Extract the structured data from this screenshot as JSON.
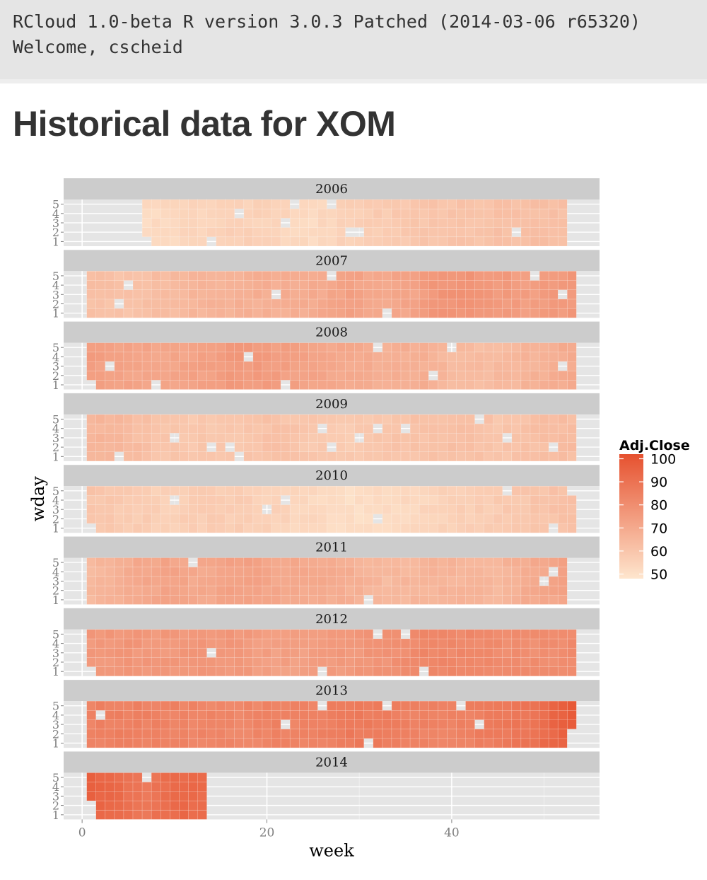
{
  "header": {
    "version_line": "RCloud 1.0-beta R version 3.0.3 Patched (2014-03-06 r65320)",
    "welcome_line": "Welcome, cscheid"
  },
  "page": {
    "title": "Historical data for XOM"
  },
  "chart_data": {
    "type": "heatmap",
    "title": "",
    "xlabel": "week",
    "ylabel": "wday",
    "facet_by": "year",
    "x_ticks": [
      0,
      20,
      40
    ],
    "x_tick_labels": [
      "0",
      "20",
      "40"
    ],
    "xlim": [
      -2,
      56
    ],
    "y_ticks": [
      1,
      2,
      3,
      4,
      5
    ],
    "y_tick_labels": [
      "1",
      "2",
      "3",
      "4",
      "5"
    ],
    "ylim": [
      0.5,
      5.5
    ],
    "grid": true,
    "legend": {
      "title": "Adj.Close",
      "position": "right",
      "breaks": [
        100,
        90,
        80,
        70,
        60,
        50
      ],
      "range": [
        48,
        102
      ],
      "low_color": "#fee6ce",
      "high_color": "#e6512f"
    },
    "facets": [
      {
        "year": "2006",
        "start_week": 7,
        "end_week": 52,
        "values": [
          {
            "week": 7,
            "value": 52
          },
          {
            "week": 12,
            "value": 54
          },
          {
            "week": 17,
            "value": 56
          },
          {
            "week": 22,
            "value": 54
          },
          {
            "week": 25,
            "value": 52
          },
          {
            "week": 28,
            "value": 55
          },
          {
            "week": 33,
            "value": 58
          },
          {
            "week": 38,
            "value": 60
          },
          {
            "week": 43,
            "value": 61
          },
          {
            "week": 48,
            "value": 62
          },
          {
            "week": 52,
            "value": 62
          }
        ]
      },
      {
        "year": "2007",
        "start_week": 1,
        "end_week": 53,
        "values": [
          {
            "week": 1,
            "value": 62
          },
          {
            "week": 5,
            "value": 61
          },
          {
            "week": 10,
            "value": 64
          },
          {
            "week": 15,
            "value": 67
          },
          {
            "week": 20,
            "value": 68
          },
          {
            "week": 25,
            "value": 69
          },
          {
            "week": 29,
            "value": 73
          },
          {
            "week": 32,
            "value": 70
          },
          {
            "week": 36,
            "value": 72
          },
          {
            "week": 38,
            "value": 77
          },
          {
            "week": 41,
            "value": 78
          },
          {
            "week": 44,
            "value": 76
          },
          {
            "week": 48,
            "value": 74
          },
          {
            "week": 53,
            "value": 76
          }
        ]
      },
      {
        "year": "2008",
        "start_week": 1,
        "end_week": 53,
        "values": [
          {
            "week": 1,
            "value": 74
          },
          {
            "week": 5,
            "value": 72
          },
          {
            "week": 9,
            "value": 71
          },
          {
            "week": 13,
            "value": 73
          },
          {
            "week": 17,
            "value": 76
          },
          {
            "week": 21,
            "value": 74
          },
          {
            "week": 25,
            "value": 72
          },
          {
            "week": 29,
            "value": 70
          },
          {
            "week": 33,
            "value": 68
          },
          {
            "week": 37,
            "value": 68
          },
          {
            "week": 40,
            "value": 64
          },
          {
            "week": 44,
            "value": 63
          },
          {
            "week": 48,
            "value": 66
          },
          {
            "week": 53,
            "value": 70
          }
        ]
      },
      {
        "year": "2009",
        "start_week": 1,
        "end_week": 53,
        "values": [
          {
            "week": 1,
            "value": 66
          },
          {
            "week": 5,
            "value": 64
          },
          {
            "week": 9,
            "value": 60
          },
          {
            "week": 13,
            "value": 59
          },
          {
            "week": 17,
            "value": 60
          },
          {
            "week": 21,
            "value": 61
          },
          {
            "week": 25,
            "value": 59
          },
          {
            "week": 29,
            "value": 58
          },
          {
            "week": 33,
            "value": 60
          },
          {
            "week": 37,
            "value": 61
          },
          {
            "week": 41,
            "value": 62
          },
          {
            "week": 45,
            "value": 60
          },
          {
            "week": 49,
            "value": 62
          },
          {
            "week": 53,
            "value": 63
          }
        ]
      },
      {
        "year": "2010",
        "start_week": 1,
        "end_week": 53,
        "values": [
          {
            "week": 1,
            "value": 60
          },
          {
            "week": 5,
            "value": 58
          },
          {
            "week": 9,
            "value": 56
          },
          {
            "week": 13,
            "value": 57
          },
          {
            "week": 17,
            "value": 57
          },
          {
            "week": 21,
            "value": 55
          },
          {
            "week": 25,
            "value": 53
          },
          {
            "week": 29,
            "value": 51
          },
          {
            "week": 33,
            "value": 52
          },
          {
            "week": 37,
            "value": 54
          },
          {
            "week": 41,
            "value": 56
          },
          {
            "week": 45,
            "value": 58
          },
          {
            "week": 49,
            "value": 60
          },
          {
            "week": 53,
            "value": 62
          }
        ]
      },
      {
        "year": "2011",
        "start_week": 1,
        "end_week": 52,
        "values": [
          {
            "week": 1,
            "value": 64
          },
          {
            "week": 5,
            "value": 69
          },
          {
            "week": 9,
            "value": 72
          },
          {
            "week": 13,
            "value": 70
          },
          {
            "week": 17,
            "value": 73
          },
          {
            "week": 21,
            "value": 71
          },
          {
            "week": 25,
            "value": 70
          },
          {
            "week": 29,
            "value": 68
          },
          {
            "week": 33,
            "value": 64
          },
          {
            "week": 37,
            "value": 66
          },
          {
            "week": 41,
            "value": 66
          },
          {
            "week": 45,
            "value": 65
          },
          {
            "week": 49,
            "value": 70
          },
          {
            "week": 52,
            "value": 72
          }
        ]
      },
      {
        "year": "2012",
        "start_week": 1,
        "end_week": 53,
        "values": [
          {
            "week": 1,
            "value": 76
          },
          {
            "week": 5,
            "value": 77
          },
          {
            "week": 9,
            "value": 76
          },
          {
            "week": 13,
            "value": 77
          },
          {
            "week": 17,
            "value": 76
          },
          {
            "week": 21,
            "value": 73
          },
          {
            "week": 25,
            "value": 74
          },
          {
            "week": 29,
            "value": 76
          },
          {
            "week": 33,
            "value": 78
          },
          {
            "week": 37,
            "value": 83
          },
          {
            "week": 41,
            "value": 82
          },
          {
            "week": 45,
            "value": 81
          },
          {
            "week": 49,
            "value": 80
          },
          {
            "week": 53,
            "value": 81
          }
        ]
      },
      {
        "year": "2013",
        "start_week": 1,
        "end_week": 53,
        "values": [
          {
            "week": 1,
            "value": 84
          },
          {
            "week": 5,
            "value": 85
          },
          {
            "week": 9,
            "value": 84
          },
          {
            "week": 13,
            "value": 83
          },
          {
            "week": 17,
            "value": 82
          },
          {
            "week": 21,
            "value": 84
          },
          {
            "week": 25,
            "value": 83
          },
          {
            "week": 29,
            "value": 87
          },
          {
            "week": 33,
            "value": 86
          },
          {
            "week": 37,
            "value": 84
          },
          {
            "week": 41,
            "value": 84
          },
          {
            "week": 45,
            "value": 87
          },
          {
            "week": 49,
            "value": 90
          },
          {
            "week": 52,
            "value": 96
          },
          {
            "week": 53,
            "value": 98
          }
        ]
      },
      {
        "year": "2014",
        "start_week": 1,
        "end_week": 13,
        "values": [
          {
            "week": 1,
            "value": 96
          },
          {
            "week": 3,
            "value": 94
          },
          {
            "week": 5,
            "value": 90
          },
          {
            "week": 7,
            "value": 88
          },
          {
            "week": 9,
            "value": 92
          },
          {
            "week": 11,
            "value": 93
          },
          {
            "week": 13,
            "value": 92
          }
        ]
      }
    ]
  }
}
